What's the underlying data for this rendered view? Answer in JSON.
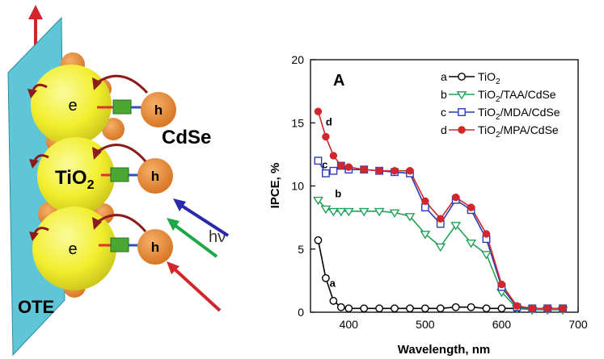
{
  "schematic": {
    "electron_label": "e",
    "hole_label": "h",
    "tio2_label": "TiO",
    "tio2_sub": "2",
    "cdse_label": "CdSe",
    "light_label": "hν",
    "electrode_label": "OTE",
    "colors": {
      "electrode": "#5ec6d6",
      "tio2": "#f2ee2e",
      "cdse": "#e6862a",
      "linker": "#4aa832",
      "arrow_up": "#d2262a",
      "light_blue": "#2a2aa8",
      "light_green": "#1fa84a",
      "light_red": "#d2262a",
      "transfer_arrow": "#8c1c1c"
    }
  },
  "chart_data": {
    "type": "line",
    "panel_label": "A",
    "xlabel": "Wavelength, nm",
    "ylabel": "IPCE, %",
    "xlim": [
      350,
      700
    ],
    "ylim": [
      0,
      20
    ],
    "x_ticks": [
      400,
      500,
      600,
      700
    ],
    "y_ticks": [
      0,
      5,
      10,
      15,
      20
    ],
    "grid": false,
    "legend_position": "top-right",
    "series": [
      {
        "key": "a",
        "name": "TiO2",
        "name_main": "TiO",
        "name_sub": "2",
        "name_rest": "",
        "marker": "circle-open",
        "color": "#000000",
        "curve_label_pos": [
          375,
          2.0
        ],
        "x": [
          360,
          370,
          380,
          390,
          400,
          420,
          440,
          460,
          480,
          500,
          520,
          540,
          560,
          580,
          600,
          620,
          640,
          660,
          680
        ],
        "y": [
          5.7,
          2.7,
          0.9,
          0.4,
          0.3,
          0.3,
          0.3,
          0.3,
          0.3,
          0.3,
          0.3,
          0.4,
          0.4,
          0.3,
          0.3,
          0.3,
          0.3,
          0.3,
          0.3
        ]
      },
      {
        "key": "b",
        "name": "TiO2/TAA/CdSe",
        "name_main": "TiO",
        "name_sub": "2",
        "name_rest": "/TAA/CdSe",
        "marker": "triangle-down-open",
        "color": "#22a05a",
        "curve_label_pos": [
          382,
          9.1
        ],
        "x": [
          360,
          370,
          380,
          390,
          400,
          420,
          440,
          460,
          480,
          500,
          520,
          540,
          560,
          580,
          600,
          620,
          640,
          660,
          680
        ],
        "y": [
          8.9,
          8.2,
          8.0,
          8.0,
          8.0,
          8.0,
          8.0,
          7.9,
          7.6,
          6.2,
          5.2,
          6.9,
          5.5,
          4.6,
          1.6,
          0.3,
          0.2,
          0.2,
          0.2
        ]
      },
      {
        "key": "c",
        "name": "TiO2/MDA/CdSe",
        "name_main": "TiO",
        "name_sub": "2",
        "name_rest": "/MDA/CdSe",
        "marker": "square-open",
        "color": "#2a3cb4",
        "curve_label_pos": [
          365,
          11.4
        ],
        "x": [
          360,
          370,
          380,
          390,
          400,
          420,
          440,
          460,
          480,
          500,
          520,
          540,
          560,
          580,
          600,
          620,
          640,
          660,
          680
        ],
        "y": [
          12.0,
          11.0,
          11.2,
          11.6,
          11.3,
          11.3,
          11.2,
          11.1,
          11.0,
          8.3,
          7.0,
          8.9,
          8.1,
          5.8,
          2.0,
          0.4,
          0.3,
          0.3,
          0.3
        ]
      },
      {
        "key": "d",
        "name": "TiO2/MPA/CdSe",
        "name_main": "TiO",
        "name_sub": "2",
        "name_rest": "/MPA/CdSe",
        "marker": "circle-filled",
        "color": "#d2262a",
        "curve_label_pos": [
          370,
          14.8
        ],
        "x": [
          360,
          370,
          380,
          390,
          400,
          420,
          440,
          460,
          480,
          500,
          520,
          540,
          560,
          580,
          600,
          620,
          640,
          660,
          680
        ],
        "y": [
          15.9,
          13.9,
          12.4,
          11.6,
          11.5,
          11.3,
          11.2,
          11.2,
          11.2,
          8.8,
          7.4,
          9.1,
          8.3,
          6.2,
          2.2,
          0.5,
          0.3,
          0.3,
          0.3
        ]
      }
    ]
  }
}
